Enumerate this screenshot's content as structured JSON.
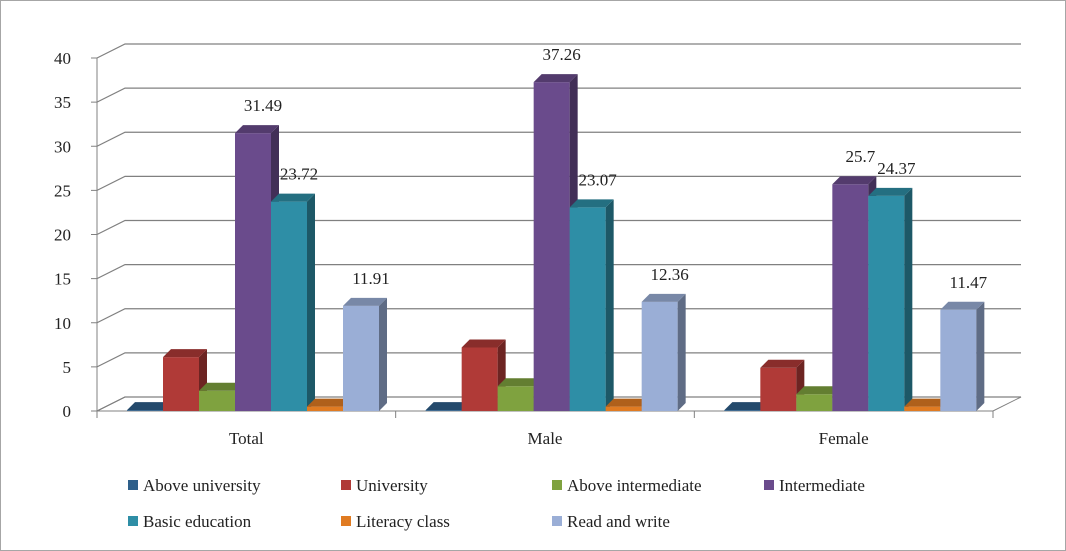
{
  "chart_data": {
    "type": "bar",
    "style": "3d-clustered-column",
    "categories": [
      "Total",
      "Male",
      "Female"
    ],
    "ylim": [
      0,
      40
    ],
    "yticks": [
      0,
      5,
      10,
      15,
      20,
      25,
      30,
      35,
      40
    ],
    "grid": true,
    "legend_position": "bottom",
    "series": [
      {
        "name": "Above university",
        "color": "#2e5f8a",
        "values": [
          0.1,
          0.1,
          0.1
        ],
        "labels": [
          "",
          "",
          ""
        ]
      },
      {
        "name": "University",
        "color": "#b03a37",
        "values": [
          6.1,
          7.2,
          4.9
        ],
        "labels": [
          "",
          "",
          ""
        ]
      },
      {
        "name": "Above intermediate",
        "color": "#7fa23f",
        "values": [
          2.3,
          2.8,
          1.9
        ],
        "labels": [
          "",
          "",
          ""
        ]
      },
      {
        "name": "Intermediate",
        "color": "#6a4b8c",
        "values": [
          31.49,
          37.26,
          25.7
        ],
        "labels": [
          "31.49",
          "37.26",
          "25.7"
        ]
      },
      {
        "name": "Basic education",
        "color": "#2e8ea6",
        "values": [
          23.72,
          23.07,
          24.37
        ],
        "labels": [
          "23.72",
          "23.07",
          "24.37"
        ]
      },
      {
        "name": "Literacy class",
        "color": "#e07b22",
        "values": [
          0.5,
          0.5,
          0.5
        ],
        "labels": [
          "",
          "",
          ""
        ]
      },
      {
        "name": "Read and write",
        "color": "#9aaed6",
        "values": [
          11.91,
          12.36,
          11.47
        ],
        "labels": [
          "11.91",
          "12.36",
          "11.47"
        ]
      }
    ]
  }
}
